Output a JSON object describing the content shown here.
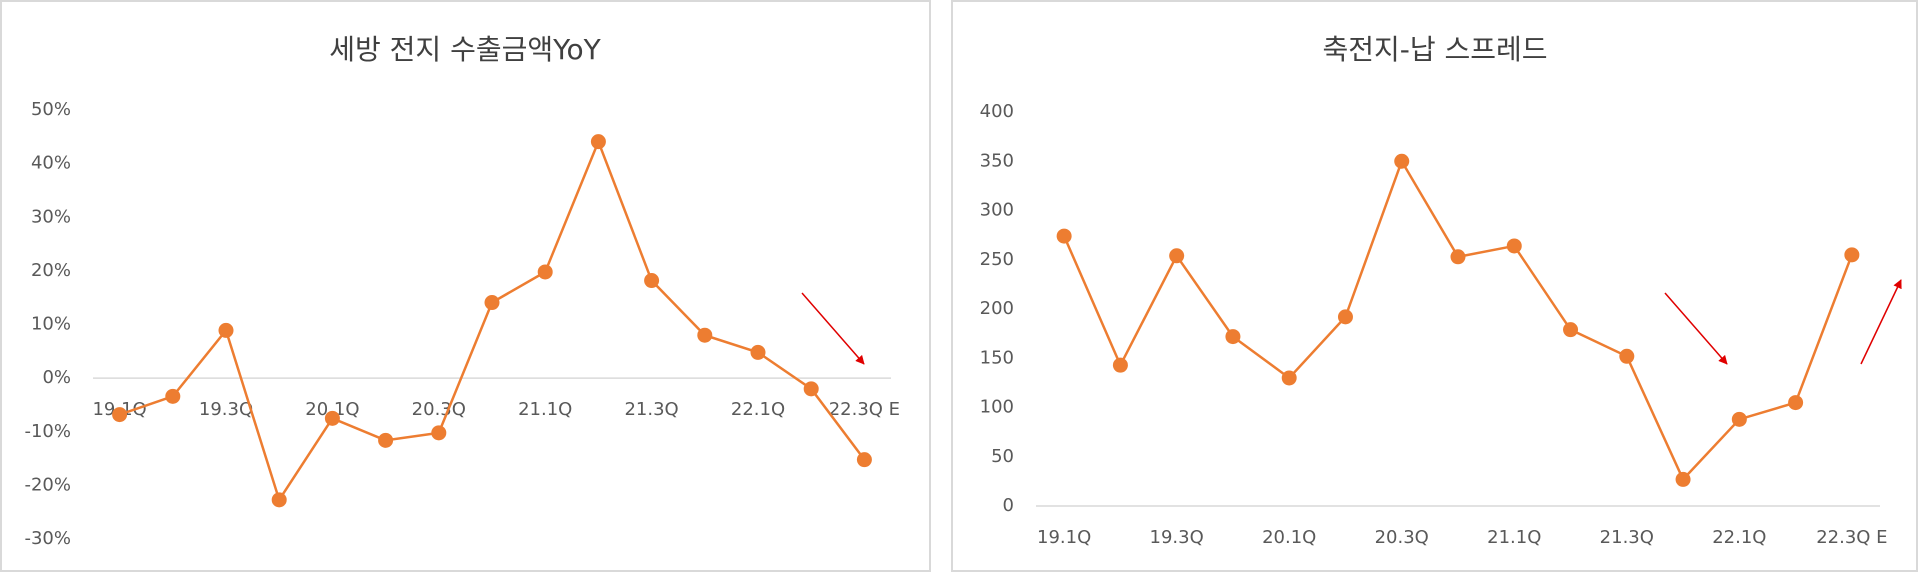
{
  "chart_data": [
    {
      "type": "line",
      "title": "세방 전지  수출금액YoY",
      "categories": [
        "19.1Q",
        null,
        "19.3Q",
        null,
        "20.1Q",
        null,
        "20.3Q",
        null,
        "21.1Q",
        null,
        "21.3Q",
        null,
        "22.1Q",
        null,
        "22.3Q E"
      ],
      "series": [
        {
          "color": "#ed7d31",
          "values": [
            -6.8,
            -3.4,
            8.9,
            -22.7,
            -7.5,
            -11.6,
            -10.2,
            14.1,
            19.8,
            44.1,
            18.2,
            8,
            4.8,
            -2,
            -15.2
          ]
        }
      ],
      "ylim": [
        -30,
        50
      ],
      "yticks": [
        {
          "value": -30,
          "label": "-30%"
        },
        {
          "value": -20,
          "label": "-20%"
        },
        {
          "value": -10,
          "label": "-10%"
        },
        {
          "value": 0,
          "label": "0%"
        },
        {
          "value": 10,
          "label": "10%"
        },
        {
          "value": 20,
          "label": "20%"
        },
        {
          "value": 30,
          "label": "30%"
        },
        {
          "value": 40,
          "label": "40%"
        },
        {
          "value": 50,
          "label": "50%"
        }
      ],
      "grid": false
    },
    {
      "type": "line",
      "title": "축전지-납 스프레드",
      "categories": [
        "19.1Q",
        null,
        "19.3Q",
        null,
        "20.1Q",
        null,
        "20.3Q",
        null,
        "21.1Q",
        null,
        "21.3Q",
        null,
        "22.1Q",
        null,
        "22.3Q E"
      ],
      "series": [
        {
          "color": "#ed7d31",
          "values": [
            274,
            143,
            254,
            172,
            130,
            192,
            350,
            253,
            264,
            179,
            152,
            27,
            88,
            105,
            255
          ]
        }
      ],
      "ylim": [
        0,
        400
      ],
      "yticks": [
        0,
        50,
        100,
        150,
        200,
        250,
        300,
        350,
        400
      ],
      "grid": false
    }
  ]
}
